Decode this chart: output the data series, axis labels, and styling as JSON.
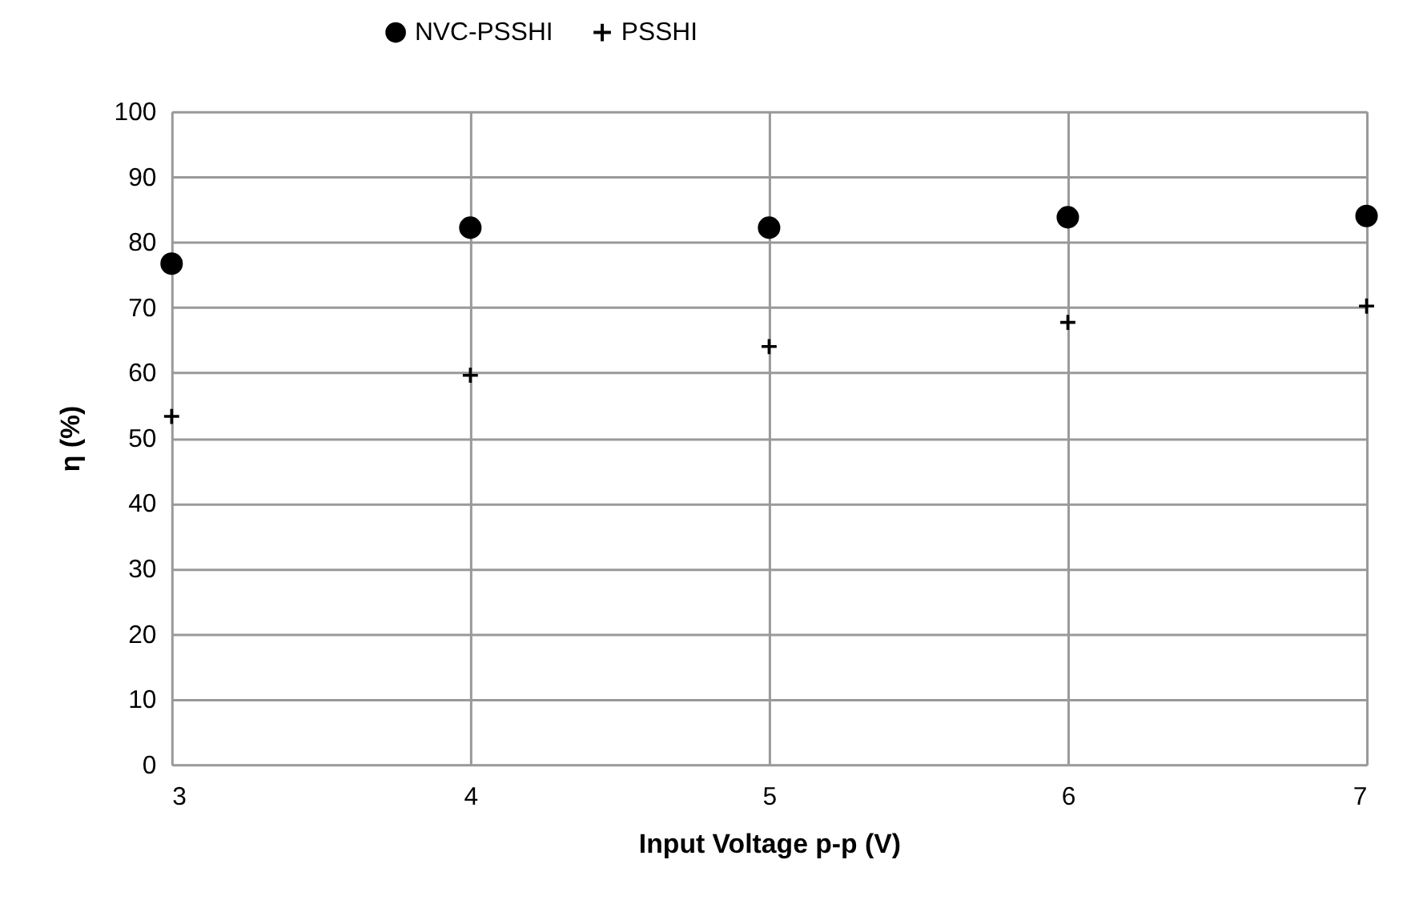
{
  "chart_data": {
    "type": "scatter",
    "xlabel": "Input Voltage p-p (V)",
    "ylabel": "η (%)",
    "x": [
      3,
      4,
      5,
      6,
      7
    ],
    "series": [
      {
        "name": "NVC-PSSHI",
        "color": "#000000",
        "marker": "circle",
        "values": [
          76.7,
          82.2,
          82.2,
          83.8,
          84.0
        ]
      },
      {
        "name": "PSSHI",
        "color": "#000000",
        "marker": "cross",
        "values": [
          53.3,
          59.6,
          64.0,
          67.7,
          70.2
        ]
      }
    ],
    "xlim": [
      3,
      7
    ],
    "xticks": [
      3,
      4,
      5,
      6,
      7
    ],
    "ylim": [
      0,
      100
    ],
    "yticks": [
      0,
      10,
      20,
      30,
      40,
      50,
      60,
      70,
      80,
      90,
      100
    ],
    "grid": true,
    "legend": "top"
  }
}
